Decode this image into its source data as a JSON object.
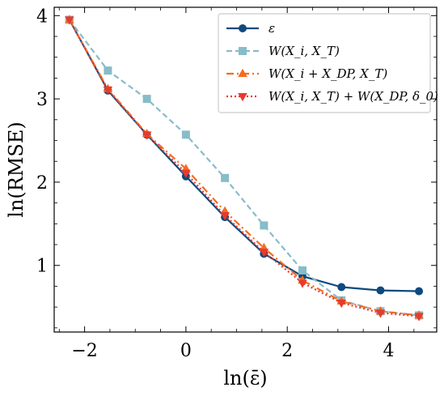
{
  "chart_data": {
    "type": "line",
    "xlabel": "ln(ε̄)",
    "ylabel": "ln(RMSE)",
    "xlim": [
      -2.6,
      4.95
    ],
    "ylim": [
      0.2,
      4.1
    ],
    "xticks": [
      -2,
      0,
      2,
      4
    ],
    "yticks": [
      1,
      2,
      3,
      4
    ],
    "xtick_labels": [
      "−2",
      "0",
      "2",
      "4"
    ],
    "ytick_labels": [
      "1",
      "2",
      "3",
      "4"
    ],
    "legend_position": "top-right",
    "grid": false,
    "series": [
      {
        "name": "ε",
        "color": "#0d4a7e",
        "dash": "solid",
        "marker": "circle",
        "x": [
          -2.3,
          -1.54,
          -0.77,
          0.0,
          0.77,
          1.54,
          2.3,
          3.07,
          3.84,
          4.6
        ],
        "y": [
          3.95,
          3.1,
          2.57,
          2.07,
          1.58,
          1.14,
          0.87,
          0.74,
          0.7,
          0.69
        ]
      },
      {
        "name": "W(X_i, X_T)",
        "color": "#88bcc9",
        "dash": "dashed",
        "marker": "square",
        "x": [
          -2.3,
          -1.54,
          -0.77,
          0.0,
          0.77,
          1.54,
          2.3,
          3.07,
          3.84,
          4.6
        ],
        "y": [
          3.95,
          3.34,
          3.0,
          2.57,
          2.05,
          1.48,
          0.94,
          0.58,
          0.45,
          0.4
        ]
      },
      {
        "name": "W(X_i + X_DP, X_T)",
        "color": "#f26d21",
        "dash": "dashdot",
        "marker": "triangle-up",
        "x": [
          -2.3,
          -1.54,
          -0.77,
          0.0,
          0.77,
          1.54,
          2.3,
          3.07,
          3.84,
          4.6
        ],
        "y": [
          3.95,
          3.12,
          2.58,
          2.16,
          1.65,
          1.21,
          0.82,
          0.57,
          0.45,
          0.4
        ]
      },
      {
        "name": "W(X_i, X_T) + W(X_DP, δ_0)",
        "color": "#e83a2d",
        "dash": "dotted",
        "marker": "triangle-down",
        "x": [
          -2.3,
          -1.54,
          -0.77,
          0.0,
          0.77,
          1.54,
          2.3,
          3.07,
          3.84,
          4.6
        ],
        "y": [
          3.95,
          3.11,
          2.57,
          2.11,
          1.6,
          1.16,
          0.79,
          0.55,
          0.43,
          0.39
        ]
      }
    ]
  }
}
